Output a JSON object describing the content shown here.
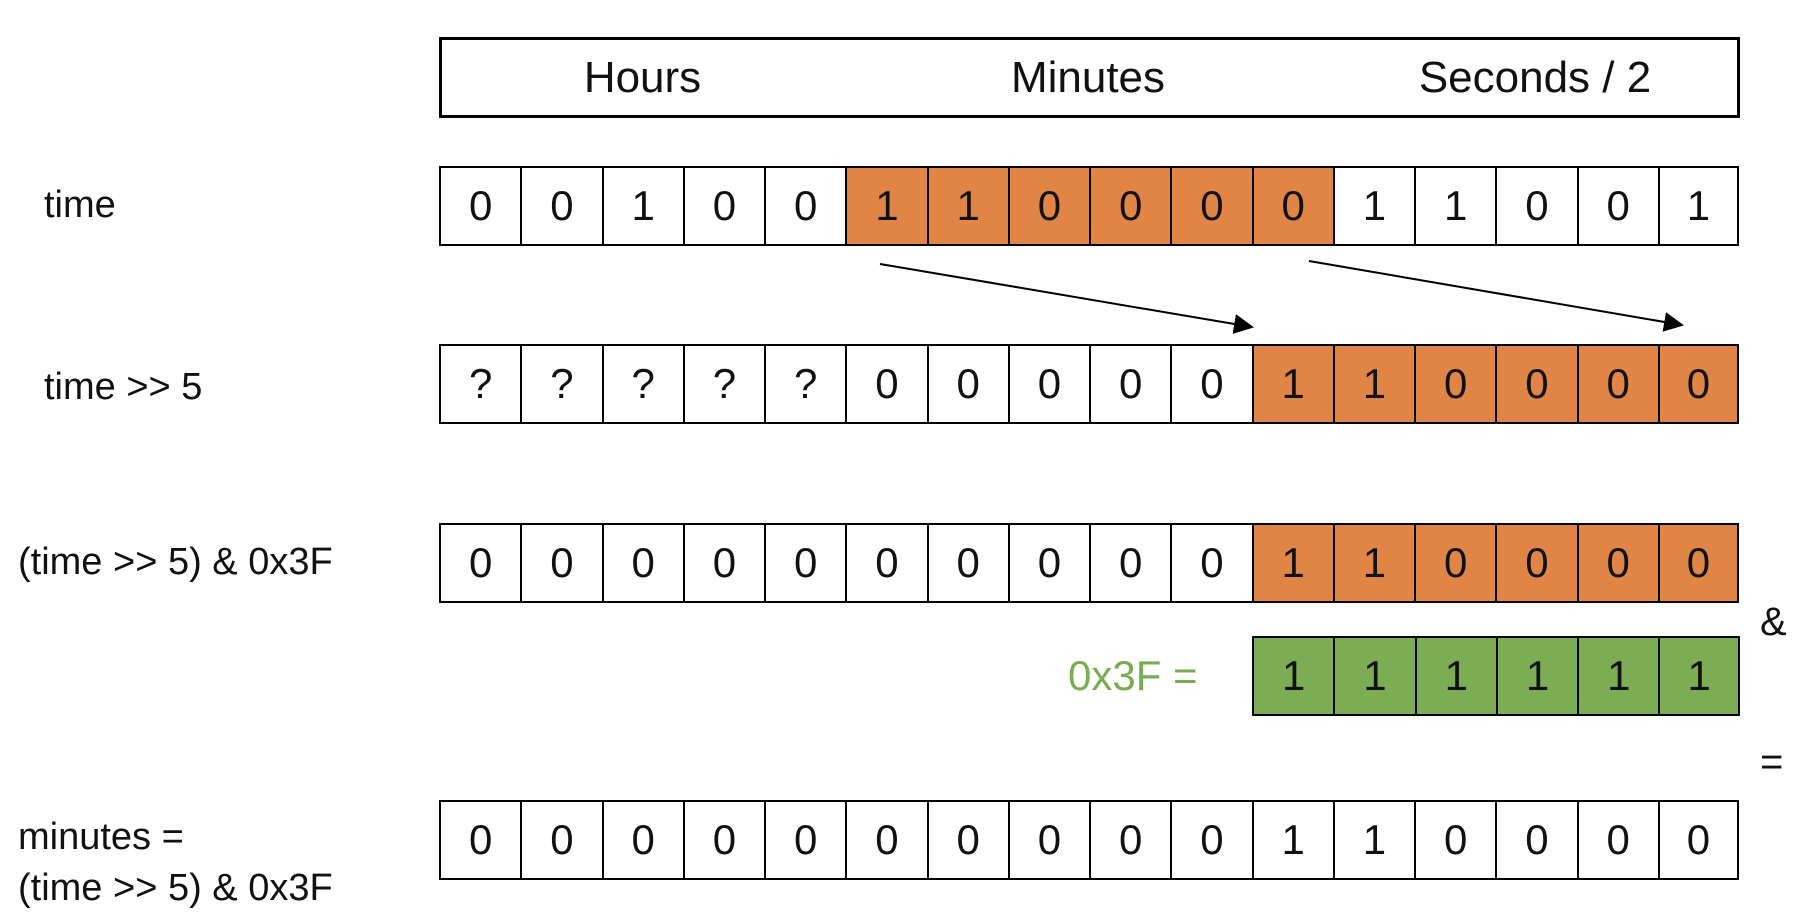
{
  "colors": {
    "orange": "#e08546",
    "green": "#7cad55",
    "white": "#ffffff",
    "mask_label": "#79ad53"
  },
  "headers": [
    "Hours",
    "Minutes",
    "Seconds / 2"
  ],
  "rows": [
    {
      "label": "time",
      "cells": [
        {
          "v": "0",
          "c": "white"
        },
        {
          "v": "0",
          "c": "white"
        },
        {
          "v": "1",
          "c": "white"
        },
        {
          "v": "0",
          "c": "white"
        },
        {
          "v": "0",
          "c": "white"
        },
        {
          "v": "1",
          "c": "orange"
        },
        {
          "v": "1",
          "c": "orange"
        },
        {
          "v": "0",
          "c": "orange"
        },
        {
          "v": "0",
          "c": "orange"
        },
        {
          "v": "0",
          "c": "orange"
        },
        {
          "v": "0",
          "c": "orange"
        },
        {
          "v": "1",
          "c": "white"
        },
        {
          "v": "1",
          "c": "white"
        },
        {
          "v": "0",
          "c": "white"
        },
        {
          "v": "0",
          "c": "white"
        },
        {
          "v": "1",
          "c": "white"
        }
      ]
    },
    {
      "label": "time >> 5",
      "cells": [
        {
          "v": "?",
          "c": "white"
        },
        {
          "v": "?",
          "c": "white"
        },
        {
          "v": "?",
          "c": "white"
        },
        {
          "v": "?",
          "c": "white"
        },
        {
          "v": "?",
          "c": "white"
        },
        {
          "v": "0",
          "c": "white"
        },
        {
          "v": "0",
          "c": "white"
        },
        {
          "v": "0",
          "c": "white"
        },
        {
          "v": "0",
          "c": "white"
        },
        {
          "v": "0",
          "c": "white"
        },
        {
          "v": "1",
          "c": "orange"
        },
        {
          "v": "1",
          "c": "orange"
        },
        {
          "v": "0",
          "c": "orange"
        },
        {
          "v": "0",
          "c": "orange"
        },
        {
          "v": "0",
          "c": "orange"
        },
        {
          "v": "0",
          "c": "orange"
        }
      ]
    },
    {
      "label": "(time >> 5) & 0x3F",
      "cells": [
        {
          "v": "0",
          "c": "white"
        },
        {
          "v": "0",
          "c": "white"
        },
        {
          "v": "0",
          "c": "white"
        },
        {
          "v": "0",
          "c": "white"
        },
        {
          "v": "0",
          "c": "white"
        },
        {
          "v": "0",
          "c": "white"
        },
        {
          "v": "0",
          "c": "white"
        },
        {
          "v": "0",
          "c": "white"
        },
        {
          "v": "0",
          "c": "white"
        },
        {
          "v": "0",
          "c": "white"
        },
        {
          "v": "1",
          "c": "orange"
        },
        {
          "v": "1",
          "c": "orange"
        },
        {
          "v": "0",
          "c": "orange"
        },
        {
          "v": "0",
          "c": "orange"
        },
        {
          "v": "0",
          "c": "orange"
        },
        {
          "v": "0",
          "c": "orange"
        }
      ]
    },
    {
      "label_line1": "minutes =",
      "label_line2": "(time >> 5) & 0x3F",
      "cells": [
        {
          "v": "0",
          "c": "white"
        },
        {
          "v": "0",
          "c": "white"
        },
        {
          "v": "0",
          "c": "white"
        },
        {
          "v": "0",
          "c": "white"
        },
        {
          "v": "0",
          "c": "white"
        },
        {
          "v": "0",
          "c": "white"
        },
        {
          "v": "0",
          "c": "white"
        },
        {
          "v": "0",
          "c": "white"
        },
        {
          "v": "0",
          "c": "white"
        },
        {
          "v": "0",
          "c": "white"
        },
        {
          "v": "1",
          "c": "white"
        },
        {
          "v": "1",
          "c": "white"
        },
        {
          "v": "0",
          "c": "white"
        },
        {
          "v": "0",
          "c": "white"
        },
        {
          "v": "0",
          "c": "white"
        },
        {
          "v": "0",
          "c": "white"
        }
      ]
    }
  ],
  "mask": {
    "label": "0x3F =",
    "cells": [
      "1",
      "1",
      "1",
      "1",
      "1",
      "1"
    ]
  },
  "ops": {
    "and": "&",
    "equals": "="
  }
}
